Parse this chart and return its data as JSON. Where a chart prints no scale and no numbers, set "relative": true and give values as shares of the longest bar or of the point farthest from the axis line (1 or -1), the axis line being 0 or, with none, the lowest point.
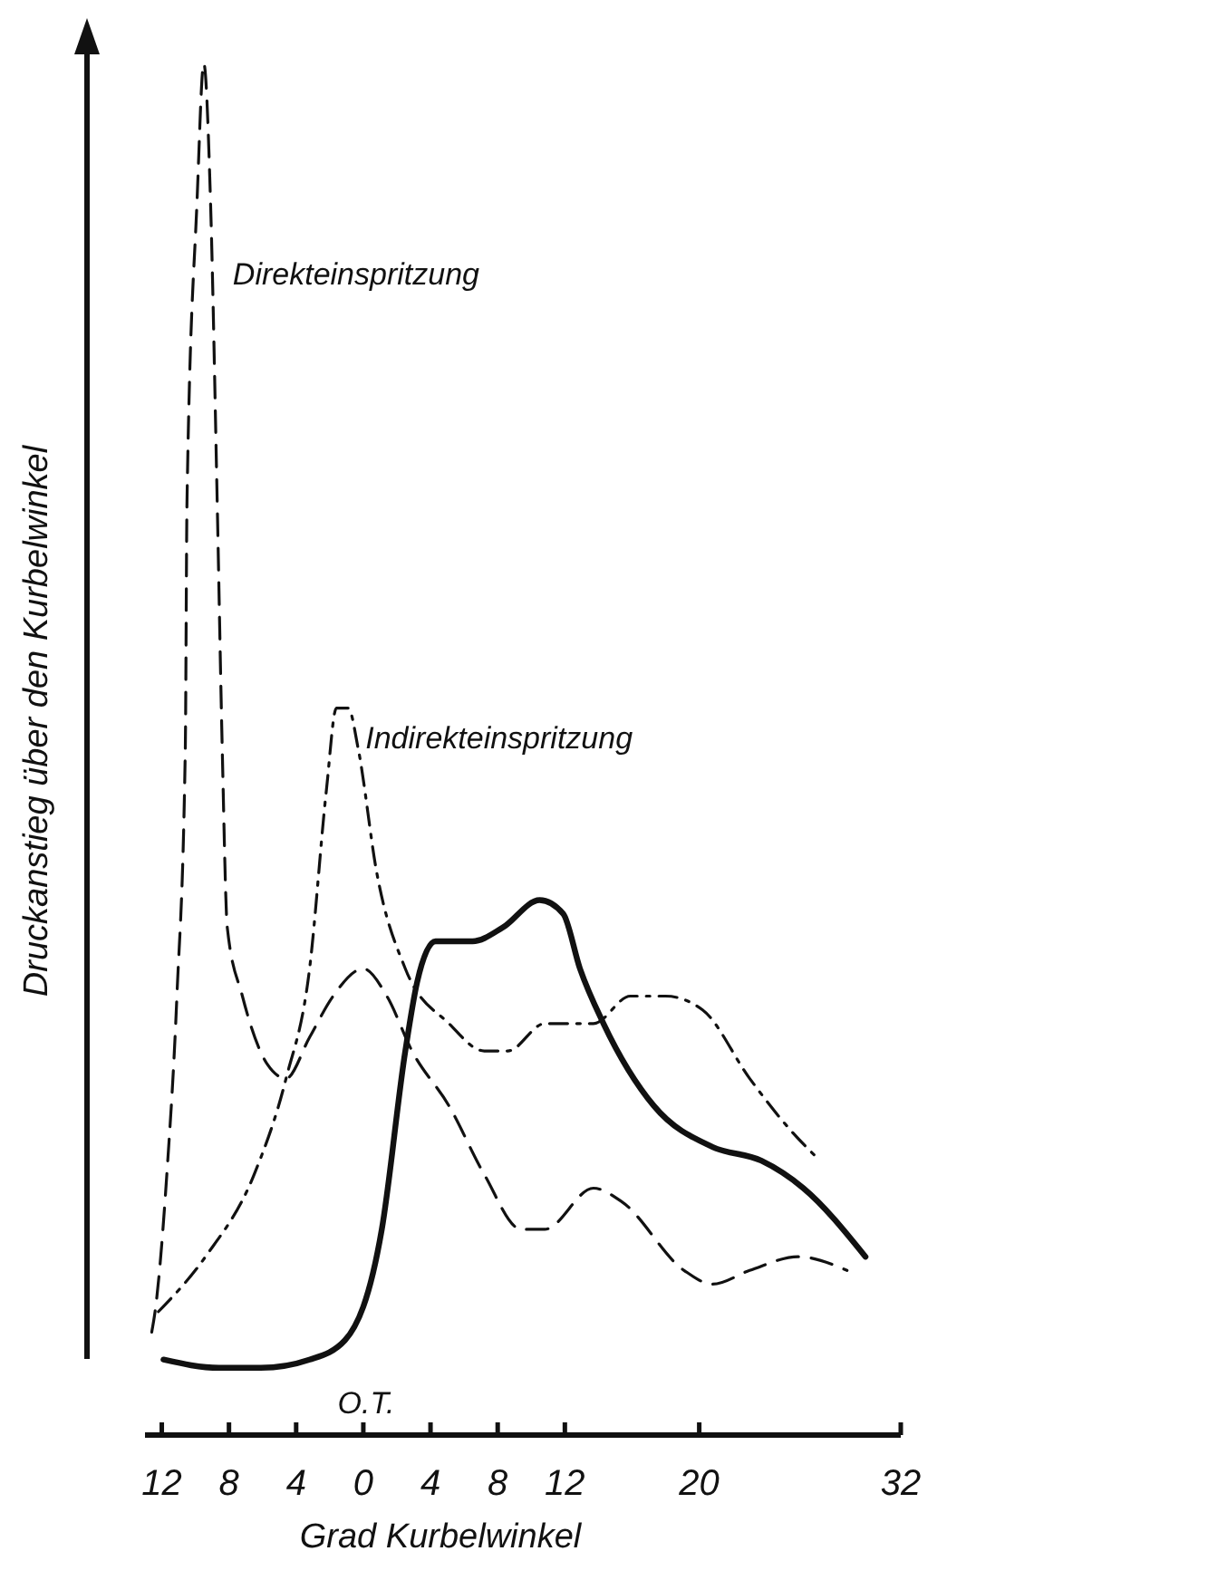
{
  "chart_data": {
    "type": "line",
    "relative": true,
    "xlabel": "Grad  Kurbelwinkel",
    "ylabel": "Druckanstieg über den Kurbelwinkel",
    "xlim": [
      -13,
      32
    ],
    "xticks": [
      {
        "value": -12,
        "label": "12"
      },
      {
        "value": -8,
        "label": "8"
      },
      {
        "value": -4,
        "label": "4"
      },
      0,
      4,
      8,
      12,
      20,
      32
    ],
    "grid": false,
    "marker": "none",
    "annotations": [
      "O.T."
    ],
    "series": [
      {
        "name": "Direkteinspritzung",
        "color": "#111111",
        "line_style": "dashed",
        "x": [
          -12.6,
          -12.4,
          -11.7,
          -11.1,
          -10.6,
          -10.5,
          -9.9,
          -9.5,
          -9.1,
          -8.7,
          -8.4,
          -8.1,
          -7.2,
          -5.7,
          -4.6,
          -3.2,
          -1.8,
          0,
          1.4,
          2.9,
          5.1,
          7.2,
          9.4,
          10.8,
          13.7,
          15.4,
          19.1,
          20.8,
          23.0,
          25.9,
          28.8
        ],
        "values": [
          0.075,
          0.09,
          0.19,
          0.32,
          0.5,
          0.68,
          0.9,
          1.0,
          0.9,
          0.68,
          0.5,
          0.37,
          0.32,
          0.27,
          0.26,
          0.29,
          0.32,
          0.34,
          0.32,
          0.28,
          0.24,
          0.19,
          0.15,
          0.15,
          0.18,
          0.17,
          0.12,
          0.11,
          0.12,
          0.13,
          0.12
        ]
      },
      {
        "name": "Indirekteinspritzung",
        "color": "#111111",
        "line_style": "dashdot",
        "x": [
          -12.2,
          -9.4,
          -6.5,
          -4.6,
          -3.2,
          -2.2,
          -1.6,
          -0.9,
          -0.3,
          0.8,
          2.5,
          5.1,
          7.2,
          8.6,
          10.8,
          13.7,
          15.9,
          18.0,
          20.2,
          23.0,
          25.6,
          27.2
        ],
        "values": [
          0.09,
          0.13,
          0.19,
          0.26,
          0.34,
          0.47,
          0.53,
          0.53,
          0.5,
          0.41,
          0.34,
          0.3,
          0.28,
          0.28,
          0.3,
          0.3,
          0.32,
          0.32,
          0.31,
          0.26,
          0.22,
          0.2
        ]
      },
      {
        "color": "#111111",
        "line_style": "solid",
        "x": [
          -11.9,
          -8.6,
          -6.1,
          -3.2,
          -1.1,
          1.1,
          2.5,
          3.2,
          4.3,
          6.5,
          8.3,
          10.5,
          11.9,
          12.9,
          14.3,
          17.3,
          20.8,
          23.7,
          26.2,
          29.9
        ],
        "values": [
          0.055,
          0.049,
          0.049,
          0.055,
          0.069,
          0.15,
          0.28,
          0.33,
          0.36,
          0.36,
          0.37,
          0.39,
          0.38,
          0.34,
          0.3,
          0.24,
          0.21,
          0.2,
          0.18,
          0.13
        ]
      }
    ]
  }
}
